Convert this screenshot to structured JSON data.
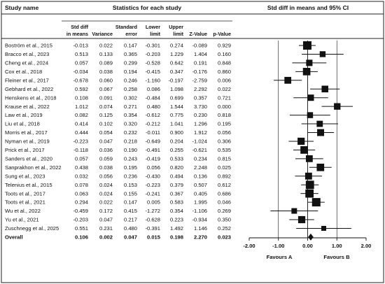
{
  "chart_data": {
    "type": "forest",
    "headers": {
      "study": "Study name",
      "stats_group": "Statistics for each study",
      "plot_title": "Std diff in means and 95% CI",
      "columns": [
        [
          "Std diff",
          "in means"
        ],
        [
          "",
          "Variance"
        ],
        [
          "Standard",
          "error"
        ],
        [
          "Lower",
          "limit"
        ],
        [
          "Upper",
          "limit"
        ],
        [
          "",
          "Z-Value"
        ],
        [
          "",
          "p-Value"
        ]
      ]
    },
    "studies": [
      {
        "name": "Boström et al., 2015",
        "values": [
          "-0.013",
          "0.022",
          "0.147",
          "-0.301",
          "0.274",
          "-0.089",
          "0.929"
        ],
        "d": -0.013,
        "lo": -0.301,
        "hi": 0.274,
        "var": 0.022
      },
      {
        "name": "Bracco et al., 2023",
        "values": [
          "0.513",
          "0.133",
          "0.365",
          "-0.203",
          "1.229",
          "1.404",
          "0.160"
        ],
        "d": 0.513,
        "lo": -0.203,
        "hi": 1.229,
        "var": 0.133
      },
      {
        "name": "Cheng et al., 2024",
        "values": [
          "0.057",
          "0.089",
          "0.299",
          "-0.528",
          "0.642",
          "0.191",
          "0.848"
        ],
        "d": 0.057,
        "lo": -0.528,
        "hi": 0.642,
        "var": 0.089
      },
      {
        "name": "Cox et al., 2018",
        "values": [
          "-0.034",
          "0.038",
          "0.194",
          "-0.415",
          "0.347",
          "-0.176",
          "0.860"
        ],
        "d": -0.034,
        "lo": -0.415,
        "hi": 0.347,
        "var": 0.038
      },
      {
        "name": "Fleiner et al., 2017",
        "values": [
          "-0.678",
          "0.060",
          "0.246",
          "-1.160",
          "-0.197",
          "-2.759",
          "0.006"
        ],
        "d": -0.678,
        "lo": -1.16,
        "hi": -0.197,
        "var": 0.06
      },
      {
        "name": "Gebhard et al., 2022",
        "values": [
          "0.592",
          "0.067",
          "0.258",
          "0.086",
          "1.098",
          "2.292",
          "0.022"
        ],
        "d": 0.592,
        "lo": 0.086,
        "hi": 1.098,
        "var": 0.067
      },
      {
        "name": "Henskens et al., 2018",
        "values": [
          "0.108",
          "0.091",
          "0.302",
          "-0.484",
          "0.699",
          "0.357",
          "0.721"
        ],
        "d": 0.108,
        "lo": -0.484,
        "hi": 0.699,
        "var": 0.091
      },
      {
        "name": "Krause et al., 2022",
        "values": [
          "1.012",
          "0.074",
          "0.271",
          "0.480",
          "1.544",
          "3.730",
          "0.000"
        ],
        "d": 1.012,
        "lo": 0.48,
        "hi": 1.544,
        "var": 0.074
      },
      {
        "name": "Law et al., 2019",
        "values": [
          "0.082",
          "0.125",
          "0.354",
          "-0.612",
          "0.775",
          "0.230",
          "0.818"
        ],
        "d": 0.082,
        "lo": -0.612,
        "hi": 0.775,
        "var": 0.125
      },
      {
        "name": "Liu et al., 2018",
        "values": [
          "0.414",
          "0.102",
          "0.320",
          "-0.212",
          "1.041",
          "1.296",
          "0.195"
        ],
        "d": 0.414,
        "lo": -0.212,
        "hi": 1.041,
        "var": 0.102
      },
      {
        "name": "Morris et al., 2017",
        "values": [
          "0.444",
          "0.054",
          "0.232",
          "-0.011",
          "0.900",
          "1.912",
          "0.056"
        ],
        "d": 0.444,
        "lo": -0.011,
        "hi": 0.9,
        "var": 0.054
      },
      {
        "name": "Nyman et al., 2019",
        "values": [
          "-0.223",
          "0.047",
          "0.218",
          "-0.649",
          "0.204",
          "-1.024",
          "0.306"
        ],
        "d": -0.223,
        "lo": -0.649,
        "hi": 0.204,
        "var": 0.047
      },
      {
        "name": "Prick et al., 2017",
        "values": [
          "-0.118",
          "0.036",
          "0.190",
          "-0.491",
          "0.255",
          "-0.621",
          "0.535"
        ],
        "d": -0.118,
        "lo": -0.491,
        "hi": 0.255,
        "var": 0.036
      },
      {
        "name": "Sanders et al., 2020",
        "values": [
          "0.057",
          "0.059",
          "0.243",
          "-0.419",
          "0.533",
          "0.234",
          "0.815"
        ],
        "d": 0.057,
        "lo": -0.419,
        "hi": 0.533,
        "var": 0.059
      },
      {
        "name": "Sanprakhon et al., 2022",
        "values": [
          "0.438",
          "0.038",
          "0.195",
          "0.056",
          "0.820",
          "2.248",
          "0.025"
        ],
        "d": 0.438,
        "lo": 0.056,
        "hi": 0.82,
        "var": 0.038
      },
      {
        "name": "Sung et al., 2023",
        "values": [
          "0.032",
          "0.056",
          "0.236",
          "-0.430",
          "0.494",
          "0.136",
          "0.892"
        ],
        "d": 0.032,
        "lo": -0.43,
        "hi": 0.494,
        "var": 0.056
      },
      {
        "name": "Telenius et al., 2015",
        "values": [
          "0.078",
          "0.024",
          "0.153",
          "-0.223",
          "0.379",
          "0.507",
          "0.612"
        ],
        "d": 0.078,
        "lo": -0.223,
        "hi": 0.379,
        "var": 0.024
      },
      {
        "name": "Toots et al., 2017",
        "values": [
          "0.063",
          "0.024",
          "0.155",
          "-0.241",
          "0.367",
          "0.405",
          "0.686"
        ],
        "d": 0.063,
        "lo": -0.241,
        "hi": 0.367,
        "var": 0.024
      },
      {
        "name": "Toots et al., 2021",
        "values": [
          "0.294",
          "0.022",
          "0.147",
          "0.005",
          "0.583",
          "1.995",
          "0.046"
        ],
        "d": 0.294,
        "lo": 0.005,
        "hi": 0.583,
        "var": 0.022
      },
      {
        "name": "Wu et al., 2022",
        "values": [
          "-0.459",
          "0.172",
          "0.415",
          "-1.272",
          "0.354",
          "-1.106",
          "0.269"
        ],
        "d": -0.459,
        "lo": -1.272,
        "hi": 0.354,
        "var": 0.172
      },
      {
        "name": "Yu et al., 2021",
        "values": [
          "-0.203",
          "0.047",
          "0.217",
          "-0.628",
          "0.223",
          "-0.934",
          "0.350"
        ],
        "d": -0.203,
        "lo": -0.628,
        "hi": 0.223,
        "var": 0.047
      },
      {
        "name": "Zuschnegg et al., 2025",
        "values": [
          "0.551",
          "0.231",
          "0.480",
          "-0.391",
          "1.492",
          "1.146",
          "0.252"
        ],
        "d": 0.551,
        "lo": -0.391,
        "hi": 1.492,
        "var": 0.231
      }
    ],
    "overall": {
      "name": "Overall",
      "values": [
        "0.106",
        "0.002",
        "0.047",
        "0.015",
        "0.198",
        "2.270",
        "0.023"
      ],
      "d": 0.106,
      "lo": 0.015,
      "hi": 0.198
    },
    "x_axis": {
      "min": -2,
      "max": 2,
      "ticks": [
        -2,
        -1,
        0,
        1,
        2
      ],
      "tick_labels": [
        "-2.00",
        "-1.00",
        "0.00",
        "1.00",
        "2.00"
      ]
    },
    "favours": {
      "left": "Favours A",
      "right": "Favours B"
    }
  }
}
